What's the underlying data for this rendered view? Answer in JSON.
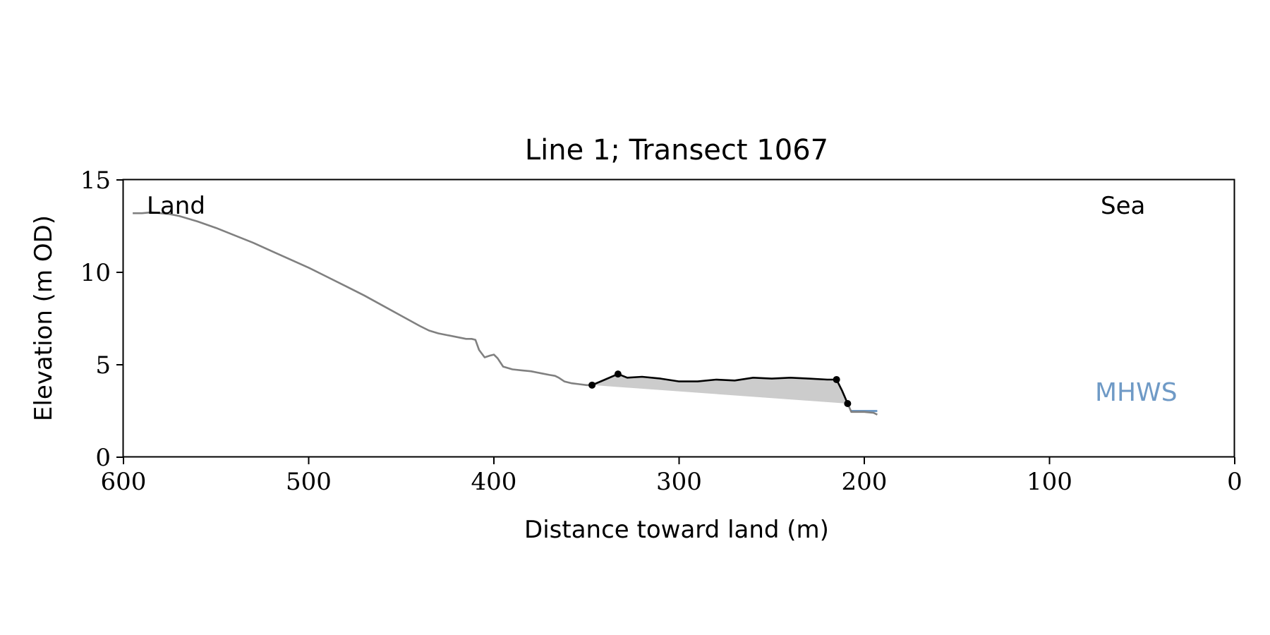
{
  "chart_data": {
    "type": "line",
    "title": "Line 1; Transect 1067",
    "xlabel": "Distance toward land (m)",
    "ylabel": "Elevation (m OD)",
    "xlim": [
      600,
      0
    ],
    "ylim": [
      0,
      15
    ],
    "xticks": [
      600,
      500,
      400,
      300,
      200,
      100,
      0
    ],
    "yticks": [
      0,
      5,
      10,
      15
    ],
    "grid": false,
    "annotations": {
      "land": "Land",
      "sea": "Sea",
      "mhws": "MHWS"
    },
    "colors": {
      "profile": "#808080",
      "feature": "#000000",
      "fill": "#cccccc",
      "mhws": "#6f9ac6",
      "axis": "#000000"
    },
    "profile": {
      "x": [
        595,
        590,
        585,
        580,
        575,
        570,
        560,
        550,
        540,
        530,
        520,
        510,
        500,
        490,
        480,
        470,
        460,
        450,
        440,
        435,
        430,
        425,
        420,
        415,
        412,
        410,
        408,
        405,
        402,
        400,
        398,
        395,
        390,
        385,
        380,
        375,
        370,
        367,
        365,
        362,
        358,
        354,
        350,
        347
      ],
      "y": [
        13.2,
        13.2,
        13.25,
        13.2,
        13.15,
        13.05,
        12.75,
        12.4,
        12.0,
        11.6,
        11.15,
        10.7,
        10.25,
        9.75,
        9.25,
        8.75,
        8.2,
        7.65,
        7.1,
        6.85,
        6.7,
        6.6,
        6.5,
        6.4,
        6.4,
        6.35,
        5.8,
        5.4,
        5.5,
        5.55,
        5.35,
        4.9,
        4.75,
        4.7,
        4.65,
        4.55,
        4.45,
        4.4,
        4.3,
        4.1,
        4.0,
        3.95,
        3.9,
        3.9
      ]
    },
    "feature": {
      "x": [
        347,
        340,
        333,
        328,
        320,
        310,
        300,
        290,
        280,
        270,
        260,
        250,
        240,
        230,
        220,
        215,
        212,
        209
      ],
      "y": [
        3.9,
        4.2,
        4.5,
        4.3,
        4.35,
        4.25,
        4.1,
        4.1,
        4.2,
        4.15,
        4.3,
        4.25,
        4.3,
        4.25,
        4.2,
        4.2,
        3.6,
        2.9
      ]
    },
    "feature_points": {
      "x": [
        347,
        333,
        215,
        209
      ],
      "y": [
        3.9,
        4.5,
        4.2,
        2.9
      ]
    },
    "baseline": {
      "x": [
        347,
        209
      ],
      "y": [
        3.9,
        2.9
      ]
    },
    "seaward_profile": {
      "x": [
        209,
        207,
        200,
        195,
        193
      ],
      "y": [
        2.9,
        2.45,
        2.45,
        2.4,
        2.3
      ]
    },
    "mhws_line": {
      "x": [
        207,
        193
      ],
      "y": [
        2.5,
        2.5
      ]
    }
  }
}
